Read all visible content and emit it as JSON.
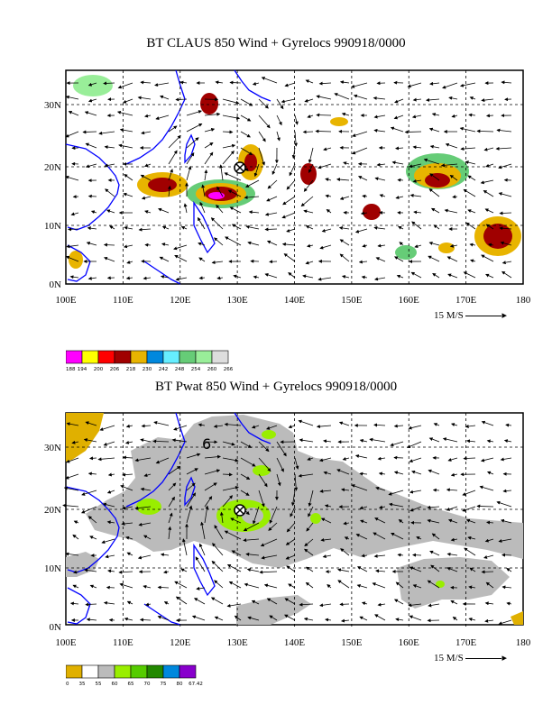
{
  "top": {
    "title": "BT CLAUS 850 Wind + Gyrelocs 990918/0000",
    "lat_labels": [
      "30N",
      "20N",
      "10N",
      "0N"
    ],
    "lon_labels": [
      "100E",
      "110E",
      "120E",
      "130E",
      "140E",
      "150E",
      "160E",
      "170E",
      "180"
    ],
    "scale_label": "15 M/S",
    "colorbar": {
      "colors": [
        "#ff00ff",
        "#ffff00",
        "#ff0000",
        "#a00000",
        "#e8b400",
        "#0088dd",
        "#66eeff",
        "#66cc77",
        "#99ee99",
        "#dddddd"
      ],
      "labels": [
        "188",
        "194",
        "200",
        "206",
        "218",
        "230",
        "242",
        "248",
        "254",
        "260",
        "266"
      ]
    },
    "gyre_location": {
      "lon": 130,
      "lat": 20
    }
  },
  "bottom": {
    "title": "BT Pwat 850 Wind + Gyrelocs 990918/0000",
    "lat_labels": [
      "30N",
      "20N",
      "10N",
      "0N"
    ],
    "lon_labels": [
      "100E",
      "110E",
      "120E",
      "130E",
      "140E",
      "150E",
      "160E",
      "170E",
      "180"
    ],
    "scale_label": "15 M/S",
    "annotation": "6",
    "colorbar": {
      "colors": [
        "#e0b000",
        "#ffffff",
        "#bbbbbb",
        "#99ee00",
        "#55cc00",
        "#228800",
        "#0088dd",
        "#8800cc"
      ],
      "labels": [
        "0",
        "35",
        "55",
        "60",
        "65",
        "70",
        "75",
        "80",
        "67.42"
      ]
    },
    "gyre_location": {
      "lon": 130,
      "lat": 20
    }
  },
  "colors": {
    "coast": "#0000ff",
    "grid": "#000000"
  }
}
